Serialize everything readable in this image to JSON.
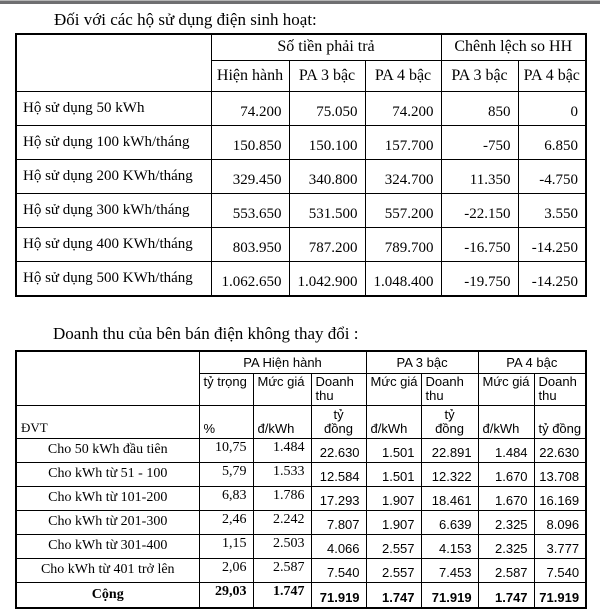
{
  "colors": {
    "topbar_gray": "#6f6f71",
    "table_border": "#000000",
    "page_bg": "#ffffff"
  },
  "titles": {
    "households": "Đối với các hộ sử dụng điện sinh hoạt:",
    "revenue": "Doanh thu của bên bán điện không thay đổi :"
  },
  "table1": {
    "header": {
      "group1": "Số tiền phải trả",
      "group2": "Chênh lệch so HH",
      "cols": [
        "Hiện hành",
        "PA 3 bậc",
        "PA 4 bậc",
        "PA 3 bậc",
        "PA 4 bậc"
      ]
    },
    "rows": [
      {
        "label": "Hộ sử dụng 50 kWh",
        "values": [
          "74.200",
          "75.050",
          "74.200",
          "850",
          "0"
        ]
      },
      {
        "label": "Hộ sử dụng 100 kWh/tháng",
        "values": [
          "150.850",
          "150.100",
          "157.700",
          "-750",
          "6.850"
        ]
      },
      {
        "label": "Hộ sử dụng 200 KWh/tháng",
        "values": [
          "329.450",
          "340.800",
          "324.700",
          "11.350",
          "-4.750"
        ]
      },
      {
        "label": "Hộ sử dụng 300 kWh/tháng",
        "values": [
          "553.650",
          "531.500",
          "557.200",
          "-22.150",
          "3.550"
        ]
      },
      {
        "label": "Hộ sử dụng 400 KWh/tháng",
        "values": [
          "803.950",
          "787.200",
          "789.700",
          "-16.750",
          "-14.250"
        ]
      },
      {
        "label": "Hộ sử dụng 500 KWh/tháng",
        "values": [
          "1.062.650",
          "1.042.900",
          "1.048.400",
          "-19.750",
          "-14.250"
        ]
      }
    ]
  },
  "table2": {
    "header": {
      "groups": [
        "PA Hiện hành",
        "PA 3 bậc",
        "PA 4 bậc"
      ],
      "sub": [
        "tỷ trọng",
        "Mức giá",
        "Doanh thu",
        "Mức giá",
        "Doanh thu",
        "Mức giá",
        "Doanh thu"
      ],
      "unit_label": "ĐVT",
      "units": [
        "%",
        "đ/kWh",
        "tỷ đồng",
        "đ/kWh",
        "tỷ đồng",
        "đ/kWh",
        "tỷ đồng"
      ]
    },
    "rows": [
      {
        "label": "Cho 50 kWh đầu tiên",
        "values": [
          "10,75",
          "1.484",
          "22.630",
          "1.501",
          "22.891",
          "1.484",
          "22.630"
        ]
      },
      {
        "label": "Cho kWh từ 51 - 100",
        "values": [
          "5,79",
          "1.533",
          "12.584",
          "1.501",
          "12.322",
          "1.670",
          "13.708"
        ]
      },
      {
        "label": "Cho kWh từ 101-200",
        "values": [
          "6,83",
          "1.786",
          "17.293",
          "1.907",
          "18.461",
          "1.670",
          "16.169"
        ]
      },
      {
        "label": "Cho kWh từ 201-300",
        "values": [
          "2,46",
          "2.242",
          "7.807",
          "1.907",
          "6.639",
          "2.325",
          "8.096"
        ]
      },
      {
        "label": "Cho kWh từ 301-400",
        "values": [
          "1,15",
          "2.503",
          "4.066",
          "2.557",
          "4.153",
          "2.325",
          "3.777"
        ]
      },
      {
        "label": "Cho kWh từ 401 trở lên",
        "values": [
          "2,06",
          "2.587",
          "7.540",
          "2.557",
          "7.453",
          "2.587",
          "7.540"
        ]
      }
    ],
    "total": {
      "label": "Cộng",
      "values": [
        "29,03",
        "1.747",
        "71.919",
        "1.747",
        "71.919",
        "1.747",
        "71.919"
      ]
    }
  }
}
